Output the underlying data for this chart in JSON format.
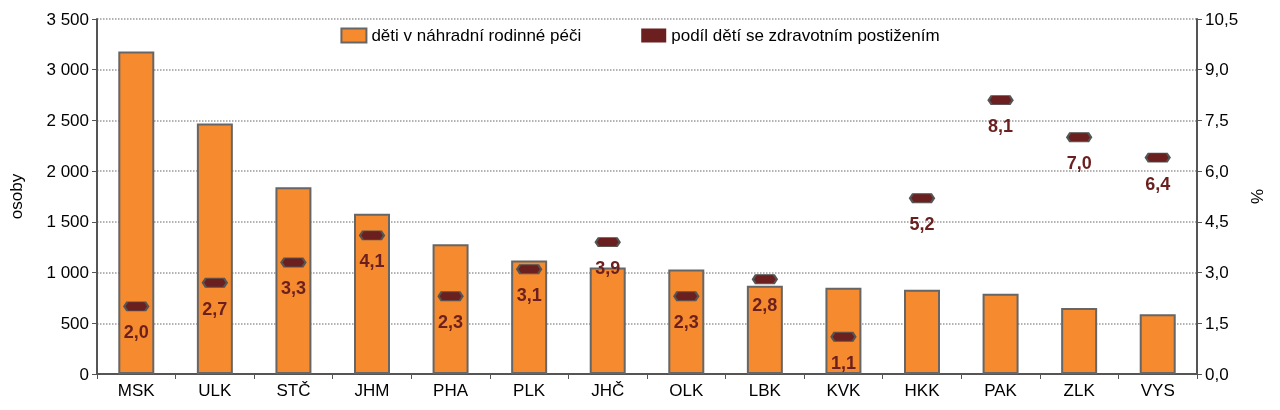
{
  "chart_data": {
    "type": "bar",
    "categories": [
      "MSK",
      "ULK",
      "STČ",
      "JHM",
      "PHA",
      "PLK",
      "JHČ",
      "OLK",
      "LBK",
      "KVK",
      "HKK",
      "PAK",
      "ZLK",
      "VYS"
    ],
    "series": [
      {
        "name": "děti v náhradní rodinné péči",
        "color": "#f58a2e",
        "values": [
          3180,
          2470,
          1840,
          1580,
          1280,
          1120,
          1050,
          1030,
          870,
          850,
          830,
          790,
          650,
          590
        ]
      },
      {
        "name": "podíl dětí se zdravotním postižením",
        "type": "scatter",
        "axis": "y2",
        "color": "#6b1f1f",
        "values": [
          2.0,
          2.7,
          3.3,
          4.1,
          2.3,
          3.1,
          3.9,
          2.3,
          2.8,
          1.1,
          5.2,
          8.1,
          7.0,
          6.4
        ],
        "value_labels": [
          "2,0",
          "2,7",
          "3,3",
          "4,1",
          "2,3",
          "3,1",
          "3,9",
          "2,3",
          "2,8",
          "1,1",
          "5,2",
          "8,1",
          "7,0",
          "6,4"
        ]
      }
    ],
    "ylabel": "osoby",
    "y2label": "%",
    "ylim": [
      0,
      3500
    ],
    "yticks": [
      0,
      {
        "value": 500,
        "label": "500"
      },
      {
        "value": 1000,
        "label": "1 000"
      },
      {
        "value": 1500,
        "label": "1 500"
      },
      {
        "value": 2000,
        "label": "2 000"
      },
      {
        "value": 2500,
        "label": "2 500"
      },
      {
        "value": 3000,
        "label": "3 000"
      },
      {
        "value": 3500,
        "label": "3 500"
      }
    ],
    "y2lim": [
      0,
      10.5
    ],
    "y2ticks": [
      {
        "value": 0,
        "label": "0,0"
      },
      {
        "value": 1.5,
        "label": "1,5"
      },
      {
        "value": 3,
        "label": "3,0"
      },
      {
        "value": 4.5,
        "label": "4,5"
      },
      {
        "value": 6,
        "label": "6,0"
      },
      {
        "value": 7.5,
        "label": "7,5"
      },
      {
        "value": 9,
        "label": "9,0"
      },
      {
        "value": 10.5,
        "label": "10,5"
      }
    ],
    "grid": "y",
    "legend": "top"
  }
}
